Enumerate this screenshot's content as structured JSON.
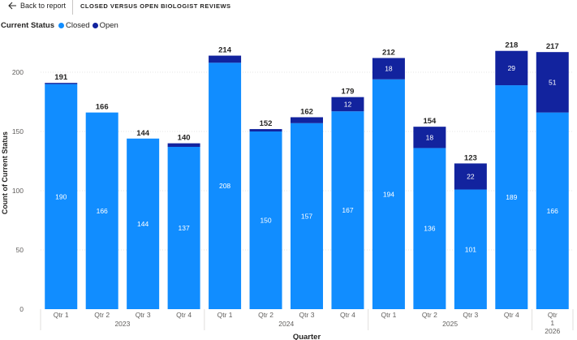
{
  "topbar": {
    "back_label": "Back to report",
    "report_title": "CLOSED VERSUS OPEN BIOLOGIST REVIEWS"
  },
  "legend": {
    "title": "Current Status",
    "items": [
      {
        "label": "Closed",
        "color": "#118dff"
      },
      {
        "label": "Open",
        "color": "#12239e"
      }
    ]
  },
  "chart_data": {
    "type": "bar",
    "stacked": true,
    "xlabel": "Quarter",
    "ylabel": "Count of Current Status",
    "ylim": [
      0,
      230
    ],
    "yticks": [
      0,
      50,
      100,
      150,
      200
    ],
    "grid": true,
    "legend_position": "top-left",
    "categories": [
      "Qtr 1",
      "Qtr 2",
      "Qtr 3",
      "Qtr 4",
      "Qtr 1",
      "Qtr 2",
      "Qtr 3",
      "Qtr 4",
      "Qtr 1",
      "Qtr 2",
      "Qtr 3",
      "Qtr 4",
      "Qtr 1"
    ],
    "category_groups": [
      {
        "label": "2023",
        "count": 4
      },
      {
        "label": "2024",
        "count": 4
      },
      {
        "label": "2025",
        "count": 4
      },
      {
        "label": "2026",
        "count": 1
      }
    ],
    "series": [
      {
        "name": "Closed",
        "color": "#118dff",
        "values": [
          190,
          166,
          144,
          137,
          208,
          150,
          157,
          167,
          194,
          136,
          101,
          189,
          166
        ]
      },
      {
        "name": "Open",
        "color": "#12239e",
        "values": [
          1,
          0,
          0,
          3,
          6,
          2,
          5,
          12,
          18,
          18,
          22,
          29,
          51
        ]
      }
    ],
    "totals": [
      191,
      166,
      144,
      140,
      214,
      152,
      162,
      179,
      212,
      154,
      123,
      218,
      217
    ],
    "open_labels_shown": [
      false,
      false,
      false,
      false,
      false,
      false,
      false,
      true,
      true,
      true,
      true,
      true,
      true
    ]
  }
}
